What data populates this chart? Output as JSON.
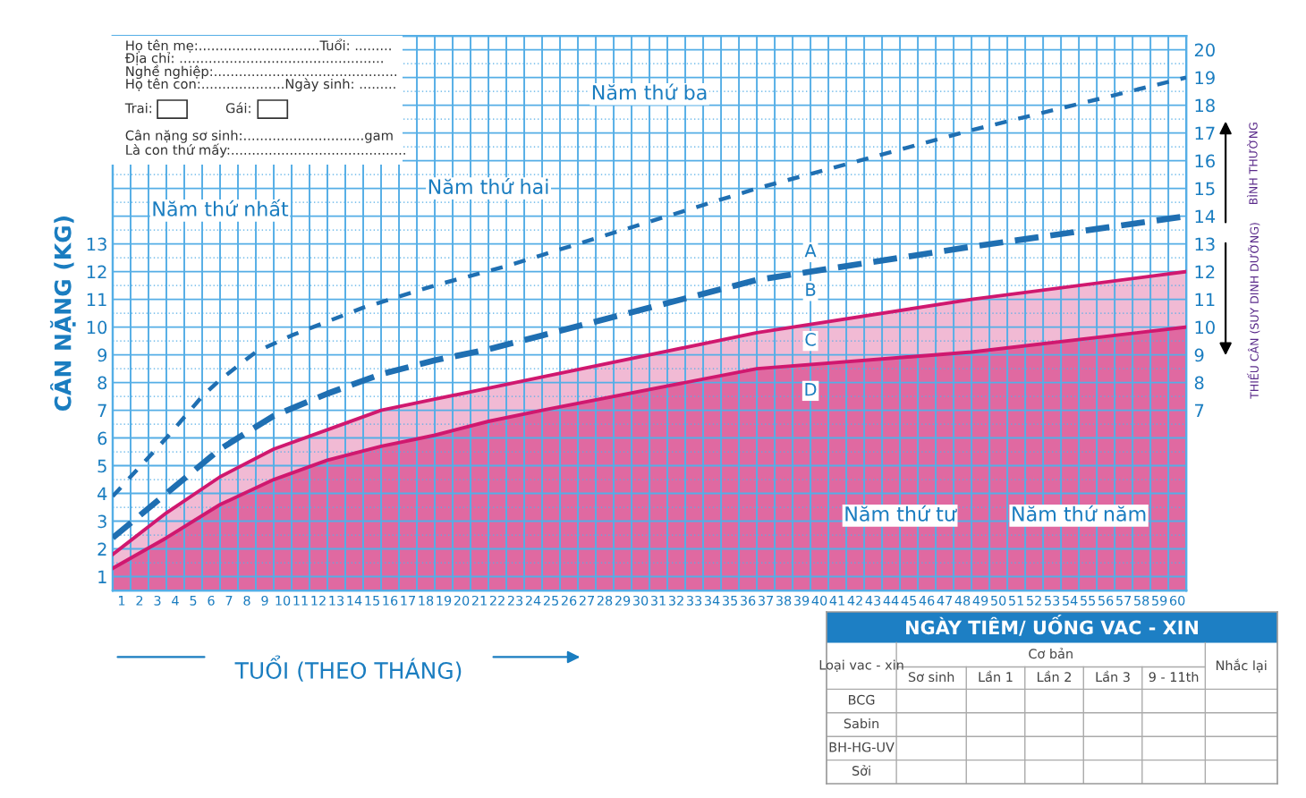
{
  "chart_data": [
    {
      "type": "line",
      "xlabel": "TUỔI (THEO THÁNG)",
      "ylabel": "CÂN NẶNG (KG)",
      "xlim": [
        0,
        60
      ],
      "ylim": [
        0.5,
        20.5
      ],
      "xticks": [
        {
          "value": 0.5,
          "label": "1"
        },
        {
          "value": 1.5,
          "label": "2"
        },
        {
          "value": 2.5,
          "label": "3"
        },
        {
          "value": 3.5,
          "label": "4"
        },
        {
          "value": 4.5,
          "label": "5"
        },
        {
          "value": 5.5,
          "label": "6"
        },
        {
          "value": 6.5,
          "label": "7"
        },
        {
          "value": 7.5,
          "label": "8"
        },
        {
          "value": 8.5,
          "label": "9"
        },
        {
          "value": 9.5,
          "label": "10"
        },
        {
          "value": 10.5,
          "label": "11"
        },
        {
          "value": 11.5,
          "label": "12"
        },
        {
          "value": 12.5,
          "label": "13"
        },
        {
          "value": 13.5,
          "label": "14"
        },
        {
          "value": 14.5,
          "label": "15"
        },
        {
          "value": 15.5,
          "label": "16"
        },
        {
          "value": 16.5,
          "label": "17"
        },
        {
          "value": 17.5,
          "label": "18"
        },
        {
          "value": 18.5,
          "label": "19"
        },
        {
          "value": 19.5,
          "label": "20"
        },
        {
          "value": 20.5,
          "label": "21"
        },
        {
          "value": 21.5,
          "label": "22"
        },
        {
          "value": 22.5,
          "label": "23"
        },
        {
          "value": 23.5,
          "label": "24"
        },
        {
          "value": 24.5,
          "label": "25"
        },
        {
          "value": 25.5,
          "label": "26"
        },
        {
          "value": 26.5,
          "label": "27"
        },
        {
          "value": 27.5,
          "label": "28"
        },
        {
          "value": 28.5,
          "label": "29"
        },
        {
          "value": 29.5,
          "label": "30"
        },
        {
          "value": 30.5,
          "label": "31"
        },
        {
          "value": 31.5,
          "label": "32"
        },
        {
          "value": 32.5,
          "label": "33"
        },
        {
          "value": 33.5,
          "label": "34"
        },
        {
          "value": 34.5,
          "label": "35"
        },
        {
          "value": 35.5,
          "label": "36"
        },
        {
          "value": 36.5,
          "label": "37"
        },
        {
          "value": 37.5,
          "label": "38"
        },
        {
          "value": 38.5,
          "label": "39"
        },
        {
          "value": 39.5,
          "label": "40"
        },
        {
          "value": 40.5,
          "label": "41"
        },
        {
          "value": 41.5,
          "label": "42"
        },
        {
          "value": 42.5,
          "label": "43"
        },
        {
          "value": 43.5,
          "label": "44"
        },
        {
          "value": 44.5,
          "label": "45"
        },
        {
          "value": 45.5,
          "label": "46"
        },
        {
          "value": 46.5,
          "label": "47"
        },
        {
          "value": 47.5,
          "label": "48"
        },
        {
          "value": 48.5,
          "label": "49"
        },
        {
          "value": 49.5,
          "label": "50"
        },
        {
          "value": 50.5,
          "label": "51"
        },
        {
          "value": 51.5,
          "label": "52"
        },
        {
          "value": 52.5,
          "label": "53"
        },
        {
          "value": 53.5,
          "label": "54"
        },
        {
          "value": 54.5,
          "label": "55"
        },
        {
          "value": 55.5,
          "label": "56"
        },
        {
          "value": 56.5,
          "label": "57"
        },
        {
          "value": 57.5,
          "label": "58"
        },
        {
          "value": 58.5,
          "label": "59"
        },
        {
          "value": 59.5,
          "label": "60"
        }
      ],
      "yticks": [
        1,
        {
          "value": 1.5,
          "label": null
        },
        2,
        {
          "value": 2.5,
          "label": null
        },
        3,
        {
          "value": 3.5,
          "label": null
        },
        4,
        {
          "value": 4.5,
          "label": null
        },
        5,
        {
          "value": 5.5,
          "label": null
        },
        6,
        {
          "value": 6.5,
          "label": null
        },
        7,
        {
          "value": 7.5,
          "label": null
        },
        8,
        {
          "value": 8.5,
          "label": null
        },
        9,
        {
          "value": 9.5,
          "label": null
        },
        10,
        {
          "value": 10.5,
          "label": null
        },
        11,
        {
          "value": 11.5,
          "label": null
        },
        12,
        {
          "value": 12.5,
          "label": null
        },
        13,
        {
          "value": 13.5,
          "label": null
        },
        {
          "value": 14,
          "label": null
        },
        {
          "value": 14.5,
          "label": null
        },
        {
          "value": 15,
          "label": null
        },
        {
          "value": 15.5,
          "label": null
        },
        {
          "value": 16,
          "label": null
        },
        {
          "value": 16.5,
          "label": null
        },
        {
          "value": 17,
          "label": null
        },
        {
          "value": 17.5,
          "label": null
        },
        {
          "value": 18,
          "label": null
        },
        {
          "value": 18.5,
          "label": null
        },
        {
          "value": 19,
          "label": null
        },
        {
          "value": 19.5,
          "label": null
        },
        {
          "value": 20,
          "label": null
        }
      ],
      "y2lim": [
        0.5,
        20.5
      ],
      "y2ticks": [
        7,
        8,
        9,
        10,
        11,
        12,
        13,
        14,
        15,
        16,
        17,
        18,
        19,
        20
      ],
      "grid": true,
      "series": [
        {
          "type": "line",
          "color": "#1f6fb2",
          "line_style": "dotted",
          "x": [
            0,
            3,
            5,
            6,
            8,
            10,
            12,
            14,
            18,
            22,
            24,
            36,
            48,
            60
          ],
          "values": [
            3.9,
            6.0,
            7.5,
            8.1,
            9.1,
            9.7,
            10.2,
            10.7,
            11.5,
            12.2,
            12.6,
            15.0,
            17.1,
            19.0
          ]
        },
        {
          "type": "line",
          "color": "#1f6fb2",
          "line_style": "dashed",
          "x": [
            0,
            3,
            6,
            9,
            12,
            15,
            18,
            21,
            24,
            36,
            48,
            60
          ],
          "values": [
            2.4,
            4.0,
            5.6,
            6.8,
            7.6,
            8.3,
            8.8,
            9.2,
            9.7,
            11.7,
            12.9,
            14.0
          ]
        },
        {
          "type": "area",
          "color": "#d0186f",
          "line_style": "solid",
          "x": [
            0,
            3,
            6,
            9,
            12,
            15,
            18,
            21,
            24,
            36,
            48,
            60
          ],
          "values": [
            1.8,
            3.3,
            4.6,
            5.6,
            6.3,
            7.0,
            7.4,
            7.8,
            8.2,
            9.8,
            11.0,
            12.0
          ]
        },
        {
          "type": "area",
          "color": "#d0186f",
          "line_style": "solid",
          "x": [
            0,
            3,
            6,
            9,
            12,
            15,
            18,
            21,
            24,
            36,
            48,
            60
          ],
          "values": [
            1.3,
            2.4,
            3.6,
            4.5,
            5.2,
            5.7,
            6.1,
            6.6,
            7.0,
            8.5,
            9.1,
            10.0
          ]
        }
      ],
      "annotations": [
        "A",
        "B",
        "C",
        "D",
        "Năm thứ nhất",
        "Năm thứ hai",
        "Năm thứ ba",
        "Năm thứ tư",
        "Năm thứ năm",
        "BÌNH THƯỜNG",
        "THIẾU CÂN (SUY DINH DƯỠNG)"
      ]
    },
    {
      "type": "other",
      "annotations": [
        "Họ tên mẹ:.............................Tuổi: .........",
        "Địa chỉ: .................................................",
        "Nghề nghiệp:............................................",
        "Họ tên con:....................Ngày sinh: .........",
        "Trai:",
        "Gái:",
        "Cân nặng sơ sinh:.............................gam",
        "Là con thứ mấy:.........................................."
      ]
    },
    {
      "type": "other",
      "annotations": [
        "NGÀY TIÊM/ UỐNG VAC - XIN",
        "Loại vac - xin",
        "Cơ bản",
        "Nhắc lại",
        "Sơ sinh",
        "Lần 1",
        "Lần 2",
        "Lần 3",
        "9 - 11th",
        "BCG",
        "Sabin",
        "BH-HG-UV",
        "Sởi"
      ]
    }
  ]
}
